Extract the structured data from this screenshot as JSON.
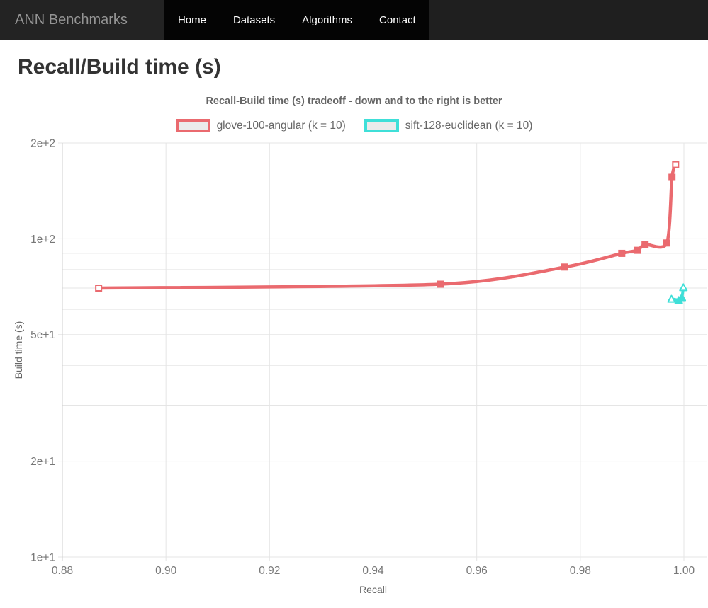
{
  "navbar": {
    "brand": "ANN Benchmarks",
    "items": [
      {
        "label": "Home"
      },
      {
        "label": "Datasets"
      },
      {
        "label": "Algorithms"
      },
      {
        "label": "Contact"
      }
    ]
  },
  "page": {
    "title": "Recall/Build time (s)"
  },
  "chart_data": {
    "type": "line",
    "title": "Recall-Build time (s) tradeoff - down and to the right is better",
    "xlabel": "Recall",
    "ylabel": "Build time (s)",
    "grid": true,
    "legend_position": "top",
    "x_axis": {
      "scale": "linear",
      "min": 0.88,
      "max": 1.0,
      "ticks": [
        0.88,
        0.9,
        0.92,
        0.94,
        0.96,
        0.98,
        1.0
      ],
      "tick_labels": [
        "0.88",
        "0.90",
        "0.92",
        "0.94",
        "0.96",
        "0.98",
        "1.00"
      ]
    },
    "y_axis": {
      "scale": "log",
      "min": 10,
      "max": 200,
      "gridline_values": [
        10,
        20,
        30,
        40,
        50,
        60,
        70,
        80,
        90,
        100,
        200
      ],
      "labeled_ticks": [
        {
          "value": 10,
          "label": "1e+1"
        },
        {
          "value": 20,
          "label": "2e+1"
        },
        {
          "value": 50,
          "label": "5e+1"
        },
        {
          "value": 100,
          "label": "1e+2"
        },
        {
          "value": 200,
          "label": "2e+2"
        }
      ]
    },
    "series": [
      {
        "name": "glove-100-angular (k = 10)",
        "color": "#EA6A6F",
        "point_style": "square",
        "points": [
          [
            0.887,
            70
          ],
          [
            0.953,
            72
          ],
          [
            0.977,
            81.5
          ],
          [
            0.988,
            90
          ],
          [
            0.991,
            92
          ],
          [
            0.9925,
            96
          ],
          [
            0.9967,
            97
          ],
          [
            0.9977,
            156
          ],
          [
            0.9984,
            171
          ]
        ]
      },
      {
        "name": "sift-128-euclidean (k = 10)",
        "color": "#3FDFD8",
        "point_style": "triangle",
        "points": [
          [
            0.9976,
            64.8
          ],
          [
            0.999,
            64.2
          ],
          [
            0.9996,
            65.5
          ],
          [
            0.9999,
            70.4
          ]
        ]
      }
    ],
    "style": {
      "gridline_color": "#e5e5e5",
      "axis_border_color": "#cfcfcf",
      "tick_label_color": "#777",
      "axis_title_color": "#666",
      "legend_fill": "#ebebeb"
    }
  }
}
